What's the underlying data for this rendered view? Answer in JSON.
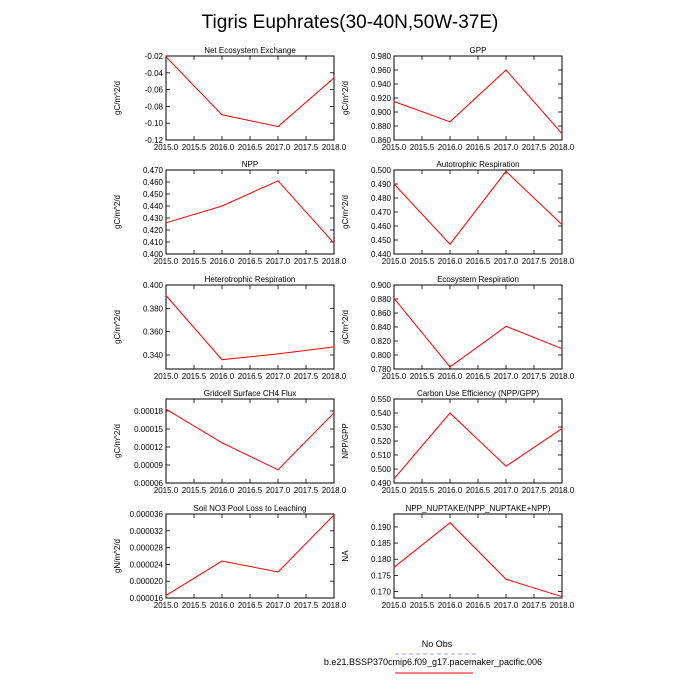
{
  "title": "Tigris Euphrates(30-40N,50W-37E)",
  "legend": {
    "entries": [
      {
        "label": "No Obs",
        "color": "#9999ff",
        "dashed": true
      },
      {
        "label": "b.e21.BSSP370cmip6.f09_g17.pacemaker_pacific.006",
        "color": "#ff0000",
        "dashed": false
      }
    ]
  },
  "colors": {
    "series": "#ff0000",
    "axis": "#000000"
  },
  "chart_data": [
    {
      "type": "line",
      "title": "Net Ecosystem Exchange",
      "ylabel": "gC/m^2/d",
      "x": [
        2015,
        2016,
        2017,
        2018
      ],
      "values": [
        -0.021,
        -0.09,
        -0.104,
        -0.046
      ],
      "xlim": [
        2015,
        2018
      ],
      "ylim": [
        -0.12,
        -0.02
      ],
      "xticks": [
        "2015.0",
        "2015.5",
        "2016.0",
        "2016.5",
        "2017.0",
        "2017.5",
        "2018.0"
      ],
      "yticks": [
        {
          "v": -0.12,
          "label": "-0.12"
        },
        {
          "v": -0.1,
          "label": "-0.10"
        },
        {
          "v": -0.08,
          "label": "-0.08"
        },
        {
          "v": -0.06,
          "label": "-0.06"
        },
        {
          "v": -0.04,
          "label": "-0.04"
        },
        {
          "v": -0.02,
          "label": "-0.02"
        }
      ]
    },
    {
      "type": "line",
      "title": "GPP",
      "ylabel": "gC/m^2/d",
      "x": [
        2015,
        2016,
        2017,
        2018
      ],
      "values": [
        0.915,
        0.886,
        0.96,
        0.869
      ],
      "xlim": [
        2015,
        2018
      ],
      "ylim": [
        0.86,
        0.98
      ],
      "xticks": [
        "2015.0",
        "2015.5",
        "2016.0",
        "2016.5",
        "2017.0",
        "2017.5",
        "2018.0"
      ],
      "yticks": [
        {
          "v": 0.86,
          "label": "0.860"
        },
        {
          "v": 0.88,
          "label": "0.880"
        },
        {
          "v": 0.9,
          "label": "0.900"
        },
        {
          "v": 0.92,
          "label": "0.920"
        },
        {
          "v": 0.94,
          "label": "0.940"
        },
        {
          "v": 0.96,
          "label": "0.960"
        },
        {
          "v": 0.98,
          "label": "0.980"
        }
      ]
    },
    {
      "type": "line",
      "title": "NPP",
      "ylabel": "gC/m^2/d",
      "x": [
        2015,
        2016,
        2017,
        2018
      ],
      "values": [
        0.426,
        0.44,
        0.461,
        0.409
      ],
      "xlim": [
        2015,
        2018
      ],
      "ylim": [
        0.4,
        0.47
      ],
      "xticks": [
        "2015.0",
        "2015.5",
        "2016.0",
        "2016.5",
        "2017.0",
        "2017.5",
        "2018.0"
      ],
      "yticks": [
        {
          "v": 0.4,
          "label": "0.400"
        },
        {
          "v": 0.41,
          "label": "0.410"
        },
        {
          "v": 0.42,
          "label": "0.420"
        },
        {
          "v": 0.43,
          "label": "0.430"
        },
        {
          "v": 0.44,
          "label": "0.440"
        },
        {
          "v": 0.45,
          "label": "0.450"
        },
        {
          "v": 0.46,
          "label": "0.460"
        },
        {
          "v": 0.47,
          "label": "0.470"
        }
      ]
    },
    {
      "type": "line",
      "title": "Autotrophic Respiration",
      "ylabel": "gC/m^2/d",
      "x": [
        2015,
        2016,
        2017,
        2018
      ],
      "values": [
        0.49,
        0.447,
        0.499,
        0.461
      ],
      "xlim": [
        2015,
        2018
      ],
      "ylim": [
        0.44,
        0.5
      ],
      "xticks": [
        "2015.0",
        "2015.5",
        "2016.0",
        "2016.5",
        "2017.0",
        "2017.5",
        "2018.0"
      ],
      "yticks": [
        {
          "v": 0.44,
          "label": "0.440"
        },
        {
          "v": 0.45,
          "label": "0.450"
        },
        {
          "v": 0.46,
          "label": "0.460"
        },
        {
          "v": 0.47,
          "label": "0.470"
        },
        {
          "v": 0.48,
          "label": "0.480"
        },
        {
          "v": 0.49,
          "label": "0.490"
        },
        {
          "v": 0.5,
          "label": "0.500"
        }
      ]
    },
    {
      "type": "line",
      "title": "Heterotrophic Respiration",
      "ylabel": "gC/m^2/d",
      "x": [
        2015,
        2016,
        2017,
        2018
      ],
      "values": [
        0.391,
        0.336,
        0.341,
        0.347
      ],
      "xlim": [
        2015,
        2018
      ],
      "ylim": [
        0.328,
        0.4
      ],
      "xticks": [
        "2015.0",
        "2015.5",
        "2016.0",
        "2016.5",
        "2017.0",
        "2017.5",
        "2018.0"
      ],
      "yticks": [
        {
          "v": 0.34,
          "label": "0.340"
        },
        {
          "v": 0.36,
          "label": "0.360"
        },
        {
          "v": 0.38,
          "label": "0.380"
        },
        {
          "v": 0.4,
          "label": "0.400"
        }
      ]
    },
    {
      "type": "line",
      "title": "Ecosystem Respiration",
      "ylabel": "gC/m^2/d",
      "x": [
        2015,
        2016,
        2017,
        2018
      ],
      "values": [
        0.881,
        0.783,
        0.841,
        0.809
      ],
      "xlim": [
        2015,
        2018
      ],
      "ylim": [
        0.78,
        0.9
      ],
      "xticks": [
        "2015.0",
        "2015.5",
        "2016.0",
        "2016.5",
        "2017.0",
        "2017.5",
        "2018.0"
      ],
      "yticks": [
        {
          "v": 0.78,
          "label": "0.780"
        },
        {
          "v": 0.8,
          "label": "0.800"
        },
        {
          "v": 0.82,
          "label": "0.820"
        },
        {
          "v": 0.84,
          "label": "0.840"
        },
        {
          "v": 0.86,
          "label": "0.860"
        },
        {
          "v": 0.88,
          "label": "0.880"
        },
        {
          "v": 0.9,
          "label": "0.900"
        }
      ]
    },
    {
      "type": "line",
      "title": "Gridcell Surface CH4 Flux",
      "ylabel": "gC/m^2/d",
      "x": [
        2015,
        2016,
        2017,
        2018
      ],
      "values": [
        0.000183,
        0.000127,
        8.2e-05,
        0.000177
      ],
      "xlim": [
        2015,
        2018
      ],
      "ylim": [
        6e-05,
        0.0002
      ],
      "xticks": [
        "2015.0",
        "2015.5",
        "2016.0",
        "2016.5",
        "2017.0",
        "2017.5",
        "2018.0"
      ],
      "yticks": [
        {
          "v": 6e-05,
          "label": "0.00006"
        },
        {
          "v": 9e-05,
          "label": "0.00009"
        },
        {
          "v": 0.00012,
          "label": "0.00012"
        },
        {
          "v": 0.00015,
          "label": "0.00015"
        },
        {
          "v": 0.00018,
          "label": "0.00018"
        }
      ]
    },
    {
      "type": "line",
      "title": "Carbon Use Efficiency (NPP/GPP)",
      "ylabel": "NPP/GPP",
      "x": [
        2015,
        2016,
        2017,
        2018
      ],
      "values": [
        0.493,
        0.54,
        0.502,
        0.529
      ],
      "xlim": [
        2015,
        2018
      ],
      "ylim": [
        0.49,
        0.55
      ],
      "xticks": [
        "2015.0",
        "2015.5",
        "2016.0",
        "2016.5",
        "2017.0",
        "2017.5",
        "2018.0"
      ],
      "yticks": [
        {
          "v": 0.49,
          "label": "0.490"
        },
        {
          "v": 0.5,
          "label": "0.500"
        },
        {
          "v": 0.51,
          "label": "0.510"
        },
        {
          "v": 0.52,
          "label": "0.520"
        },
        {
          "v": 0.53,
          "label": "0.530"
        },
        {
          "v": 0.54,
          "label": "0.540"
        },
        {
          "v": 0.55,
          "label": "0.550"
        }
      ]
    },
    {
      "type": "line",
      "title": "Soil NO3 Pool Loss to Leaching",
      "ylabel": "gN/m^2/d",
      "x": [
        2015,
        2016,
        2017,
        2018
      ],
      "values": [
        1.66e-05,
        2.48e-05,
        2.22e-05,
        3.58e-05
      ],
      "xlim": [
        2015,
        2018
      ],
      "ylim": [
        1.6e-05,
        3.6e-05
      ],
      "xticks": [
        "2015.0",
        "2015.5",
        "2016.0",
        "2016.5",
        "2017.0",
        "2017.5",
        "2018.0"
      ],
      "yticks": [
        {
          "v": 1.6e-05,
          "label": "0.000016"
        },
        {
          "v": 2e-05,
          "label": "0.000020"
        },
        {
          "v": 2.4e-05,
          "label": "0.000024"
        },
        {
          "v": 2.8e-05,
          "label": "0.000028"
        },
        {
          "v": 3.2e-05,
          "label": "0.000032"
        },
        {
          "v": 3.6e-05,
          "label": "0.000036"
        }
      ]
    },
    {
      "type": "line",
      "title": "NPP_NUPTAKE/(NPP_NUPTAKE+NPP)",
      "ylabel": "NA",
      "x": [
        2015,
        2016,
        2017,
        2018
      ],
      "values": [
        0.1775,
        0.1913,
        0.1738,
        0.1684
      ],
      "xlim": [
        2015,
        2018
      ],
      "ylim": [
        0.168,
        0.194
      ],
      "xticks": [
        "2015.0",
        "2015.5",
        "2016.0",
        "2016.5",
        "2017.0",
        "2017.5",
        "2018.0"
      ],
      "yticks": [
        {
          "v": 0.17,
          "label": "0.170"
        },
        {
          "v": 0.175,
          "label": "0.175"
        },
        {
          "v": 0.18,
          "label": "0.180"
        },
        {
          "v": 0.185,
          "label": "0.185"
        },
        {
          "v": 0.19,
          "label": "0.190"
        }
      ]
    }
  ]
}
